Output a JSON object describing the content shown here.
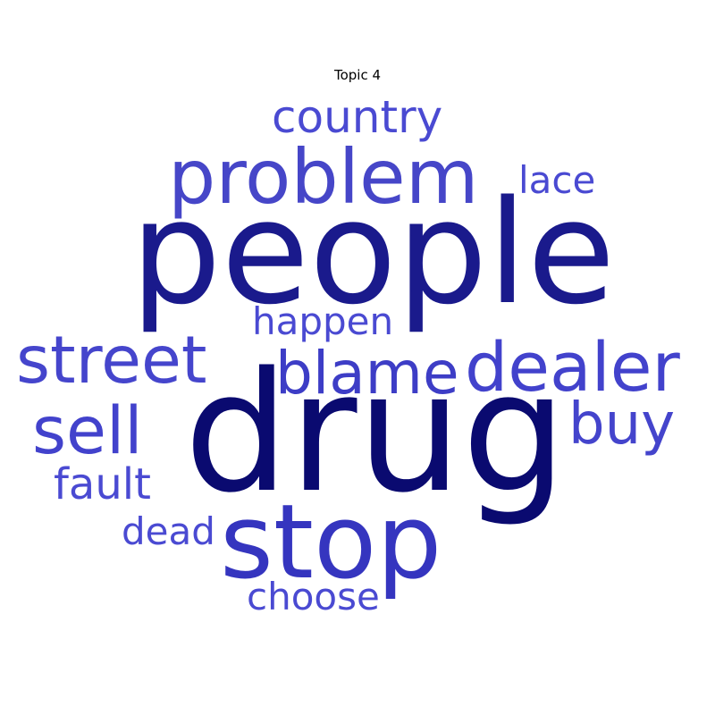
{
  "chart_data": {
    "type": "wordcloud",
    "title": "Topic 4",
    "words": [
      {
        "text": "people",
        "weight": 1.0,
        "color": "#1a1a8c"
      },
      {
        "text": "drug",
        "weight": 1.0,
        "color": "#0a0a70"
      },
      {
        "text": "problem",
        "weight": 0.62,
        "color": "#4646c8"
      },
      {
        "text": "stop",
        "weight": 0.78,
        "color": "#3535bf"
      },
      {
        "text": "dealer",
        "weight": 0.52,
        "color": "#4242cc"
      },
      {
        "text": "street",
        "weight": 0.52,
        "color": "#4545cc"
      },
      {
        "text": "blame",
        "weight": 0.47,
        "color": "#3d3dc6"
      },
      {
        "text": "sell",
        "weight": 0.5,
        "color": "#4242cc"
      },
      {
        "text": "buy",
        "weight": 0.42,
        "color": "#4444cc"
      },
      {
        "text": "country",
        "weight": 0.34,
        "color": "#4a4ad2"
      },
      {
        "text": "happen",
        "weight": 0.3,
        "color": "#4a4ad2"
      },
      {
        "text": "fault",
        "weight": 0.3,
        "color": "#4a4ad2"
      },
      {
        "text": "lace",
        "weight": 0.26,
        "color": "#4a4ad2"
      },
      {
        "text": "dead",
        "weight": 0.26,
        "color": "#4a4ad2"
      },
      {
        "text": "choose",
        "weight": 0.26,
        "color": "#4a4ad2"
      }
    ]
  }
}
